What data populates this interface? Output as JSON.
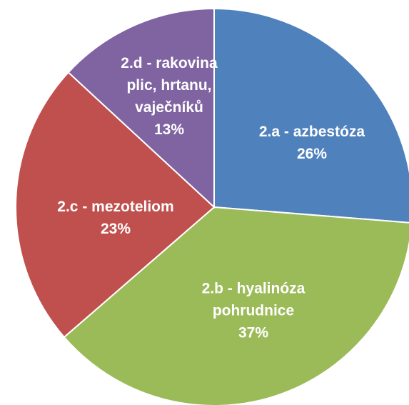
{
  "chart_data": {
    "type": "pie",
    "categories": [
      "2.a - azbestóza",
      "2.b - hyalinóza pohrudnice",
      "2.c - mezoteliom",
      "2.d - rakovina plic, hrtanu, vaječníků"
    ],
    "values": [
      26,
      37,
      23,
      13
    ],
    "value_labels": [
      "26%",
      "37%",
      "23%",
      "13%"
    ],
    "colors": [
      "#4f81bd",
      "#9bbb59",
      "#c0504d",
      "#8064a2"
    ]
  }
}
